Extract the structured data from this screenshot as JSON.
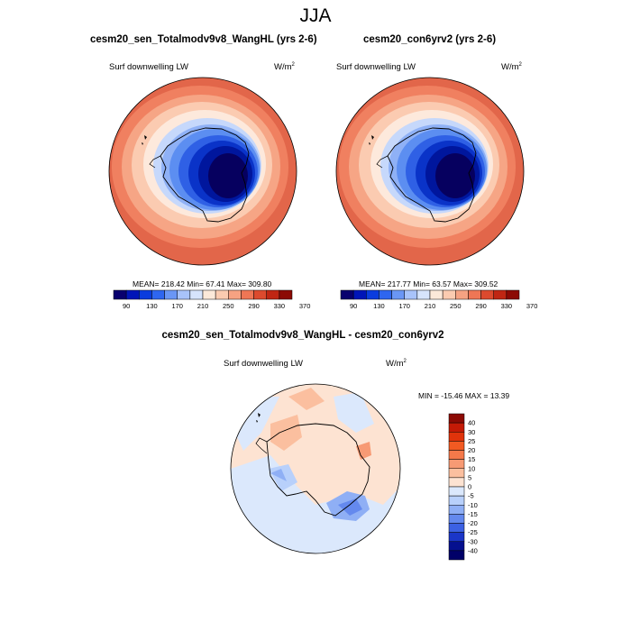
{
  "figure": {
    "title": "JJA"
  },
  "panels": [
    {
      "title": "cesm20_sen_Totalmodv9v8_WangHL (yrs 2-6)",
      "variable": "Surf downwelling LW",
      "units": "W/m",
      "units_exp": "2",
      "stats": "MEAN= 218.42  Min=  67.41  Max= 309.80"
    },
    {
      "title": "cesm20_con6yrv2 (yrs 2-6)",
      "variable": "Surf downwelling LW",
      "units": "W/m",
      "units_exp": "2",
      "stats": "MEAN= 217.77  Min=  63.57  Max= 309.52"
    },
    {
      "title": "cesm20_sen_Totalmodv9v8_WangHL - cesm20_con6yrv2",
      "variable": "Surf downwelling LW",
      "units": "W/m",
      "units_exp": "2",
      "stats": "MIN = -15.46 MAX =  13.39"
    }
  ],
  "colorbar_abs": {
    "labels": [
      "90",
      "130",
      "170",
      "210",
      "250",
      "290",
      "330",
      "370"
    ],
    "colors": [
      "#08006e",
      "#0015b8",
      "#0a3cde",
      "#2e66f0",
      "#6a96f5",
      "#a8c3fa",
      "#d6e4fc",
      "#fce9d9",
      "#fbcbb0",
      "#f6a282",
      "#ee7655",
      "#dc4a2e",
      "#c02613",
      "#8c0a04"
    ]
  },
  "colorbar_diff": {
    "labels": [
      "40",
      "30",
      "25",
      "20",
      "15",
      "10",
      "5",
      "0",
      "-5",
      "-10",
      "-15",
      "-20",
      "-25",
      "-30",
      "-40"
    ],
    "colors": [
      "#8c0a04",
      "#c41a06",
      "#e0330b",
      "#f25a22",
      "#f5794a",
      "#f79a74",
      "#fbbf9f",
      "#fde3d2",
      "#dbe8fc",
      "#b8d0fb",
      "#8faff5",
      "#6489ee",
      "#3c61e3",
      "#1b36c8",
      "#05108f",
      "#000068"
    ]
  }
}
